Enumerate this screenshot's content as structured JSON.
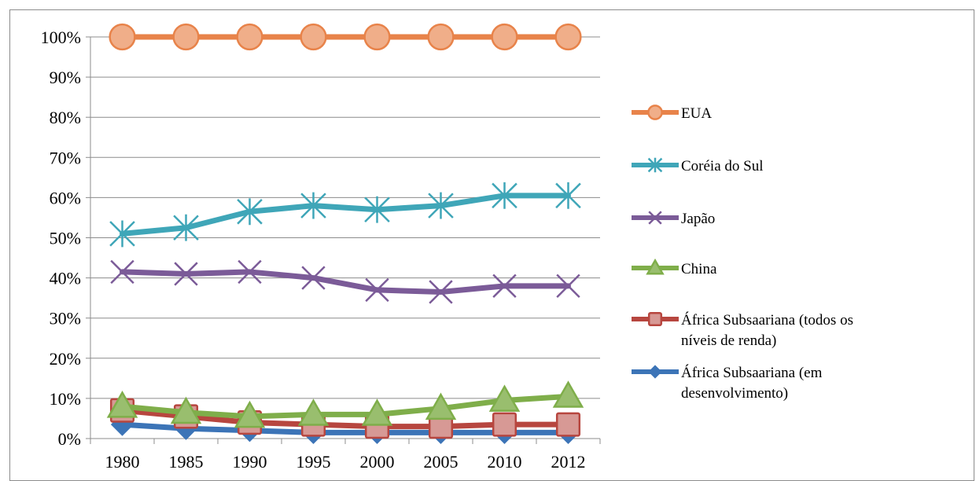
{
  "chart_data": {
    "type": "line",
    "title": "",
    "xlabel": "",
    "ylabel": "",
    "categories": [
      "1980",
      "1985",
      "1990",
      "1995",
      "2000",
      "2005",
      "2010",
      "2012"
    ],
    "ylim": [
      0,
      100
    ],
    "yticks": [
      "0%",
      "10%",
      "20%",
      "30%",
      "40%",
      "50%",
      "60%",
      "70%",
      "80%",
      "90%",
      "100%"
    ],
    "grid": "horizontal",
    "legend_position": "right",
    "series": [
      {
        "name": "EUA",
        "color": "#E8834A",
        "marker": "circle",
        "values": [
          100,
          100,
          100,
          100,
          100,
          100,
          100,
          100
        ]
      },
      {
        "name": "Coréia do Sul",
        "color": "#3FA6B8",
        "marker": "star",
        "values": [
          51,
          52.5,
          56.5,
          58,
          57,
          58,
          60.5,
          60.5
        ]
      },
      {
        "name": "Japão",
        "color": "#7B5B98",
        "marker": "x",
        "values": [
          41.5,
          41,
          41.5,
          40,
          37,
          36.5,
          38,
          38
        ]
      },
      {
        "name": "China",
        "color": "#7FAE4A",
        "marker": "triangle",
        "values": [
          8,
          6.5,
          5.5,
          6,
          6,
          7.5,
          9.5,
          10.5
        ]
      },
      {
        "name": "África Subsaariana (todos os níveis de renda)",
        "legend_lines": [
          "África Subsaariana (todos os",
          "níveis de renda)"
        ],
        "color": "#B7463F",
        "marker": "square",
        "values": [
          7,
          5.5,
          4,
          3.5,
          3,
          3,
          3.5,
          3.5
        ]
      },
      {
        "name": "África Subsaariana (em desenvolvimento)",
        "legend_lines": [
          "África Subsaariana (em",
          "desenvolvimento)"
        ],
        "color": "#3C74B7",
        "marker": "diamond",
        "values": [
          3.5,
          2.5,
          2,
          1.5,
          1.5,
          1.5,
          1.5,
          1.5
        ]
      }
    ]
  }
}
